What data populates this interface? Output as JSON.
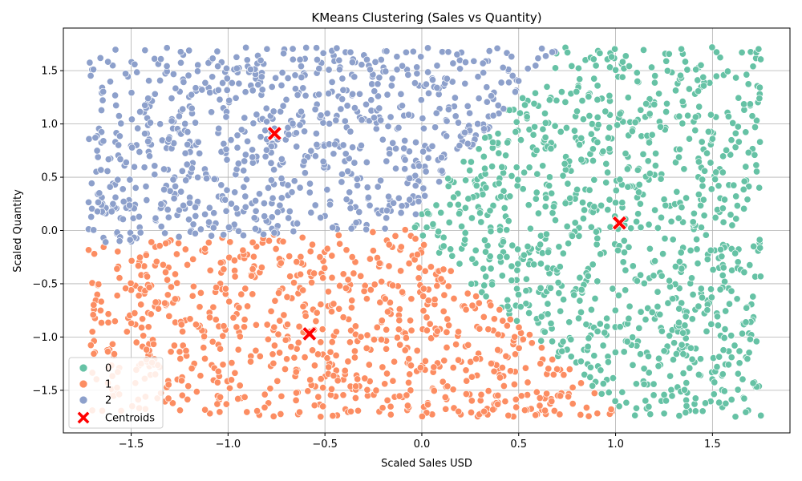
{
  "chart_data": {
    "type": "scatter",
    "title": "KMeans Clustering (Sales vs Quantity)",
    "xlabel": "Scaled Sales USD",
    "ylabel": "Scaled Quantity",
    "xlim": [
      -1.85,
      1.9
    ],
    "ylim": [
      -1.9,
      1.9
    ],
    "xticks": [
      -1.5,
      -1.0,
      -0.5,
      0.0,
      0.5,
      1.0,
      1.5
    ],
    "xtick_labels": [
      "−1.5",
      "−1.0",
      "−0.5",
      "0.0",
      "0.5",
      "1.0",
      "1.5"
    ],
    "yticks": [
      -1.5,
      -1.0,
      -0.5,
      0.0,
      0.5,
      1.0,
      1.5
    ],
    "ytick_labels": [
      "−1.5",
      "−1.0",
      "−0.5",
      "0.0",
      "0.5",
      "1.0",
      "1.5"
    ],
    "grid": true,
    "legend_position": "lower-left",
    "series": [
      {
        "name": "0",
        "color": "#66c2a5",
        "x_range": [
          0.0,
          1.75
        ],
        "y_range": [
          -1.75,
          1.72
        ],
        "approx_count": 1100
      },
      {
        "name": "1",
        "color": "#fc8d62",
        "x_range": [
          -1.72,
          0.72
        ],
        "y_range": [
          -1.75,
          0.0
        ],
        "approx_count": 900
      },
      {
        "name": "2",
        "color": "#8da0cb",
        "x_range": [
          -1.72,
          0.6
        ],
        "y_range": [
          0.0,
          1.72
        ],
        "approx_count": 750
      }
    ],
    "centroids": {
      "name": "Centroids",
      "color": "#ff0000",
      "marker": "X",
      "points": [
        {
          "x": 1.02,
          "y": 0.07
        },
        {
          "x": -0.58,
          "y": -0.97
        },
        {
          "x": -0.76,
          "y": 0.91
        }
      ]
    }
  }
}
